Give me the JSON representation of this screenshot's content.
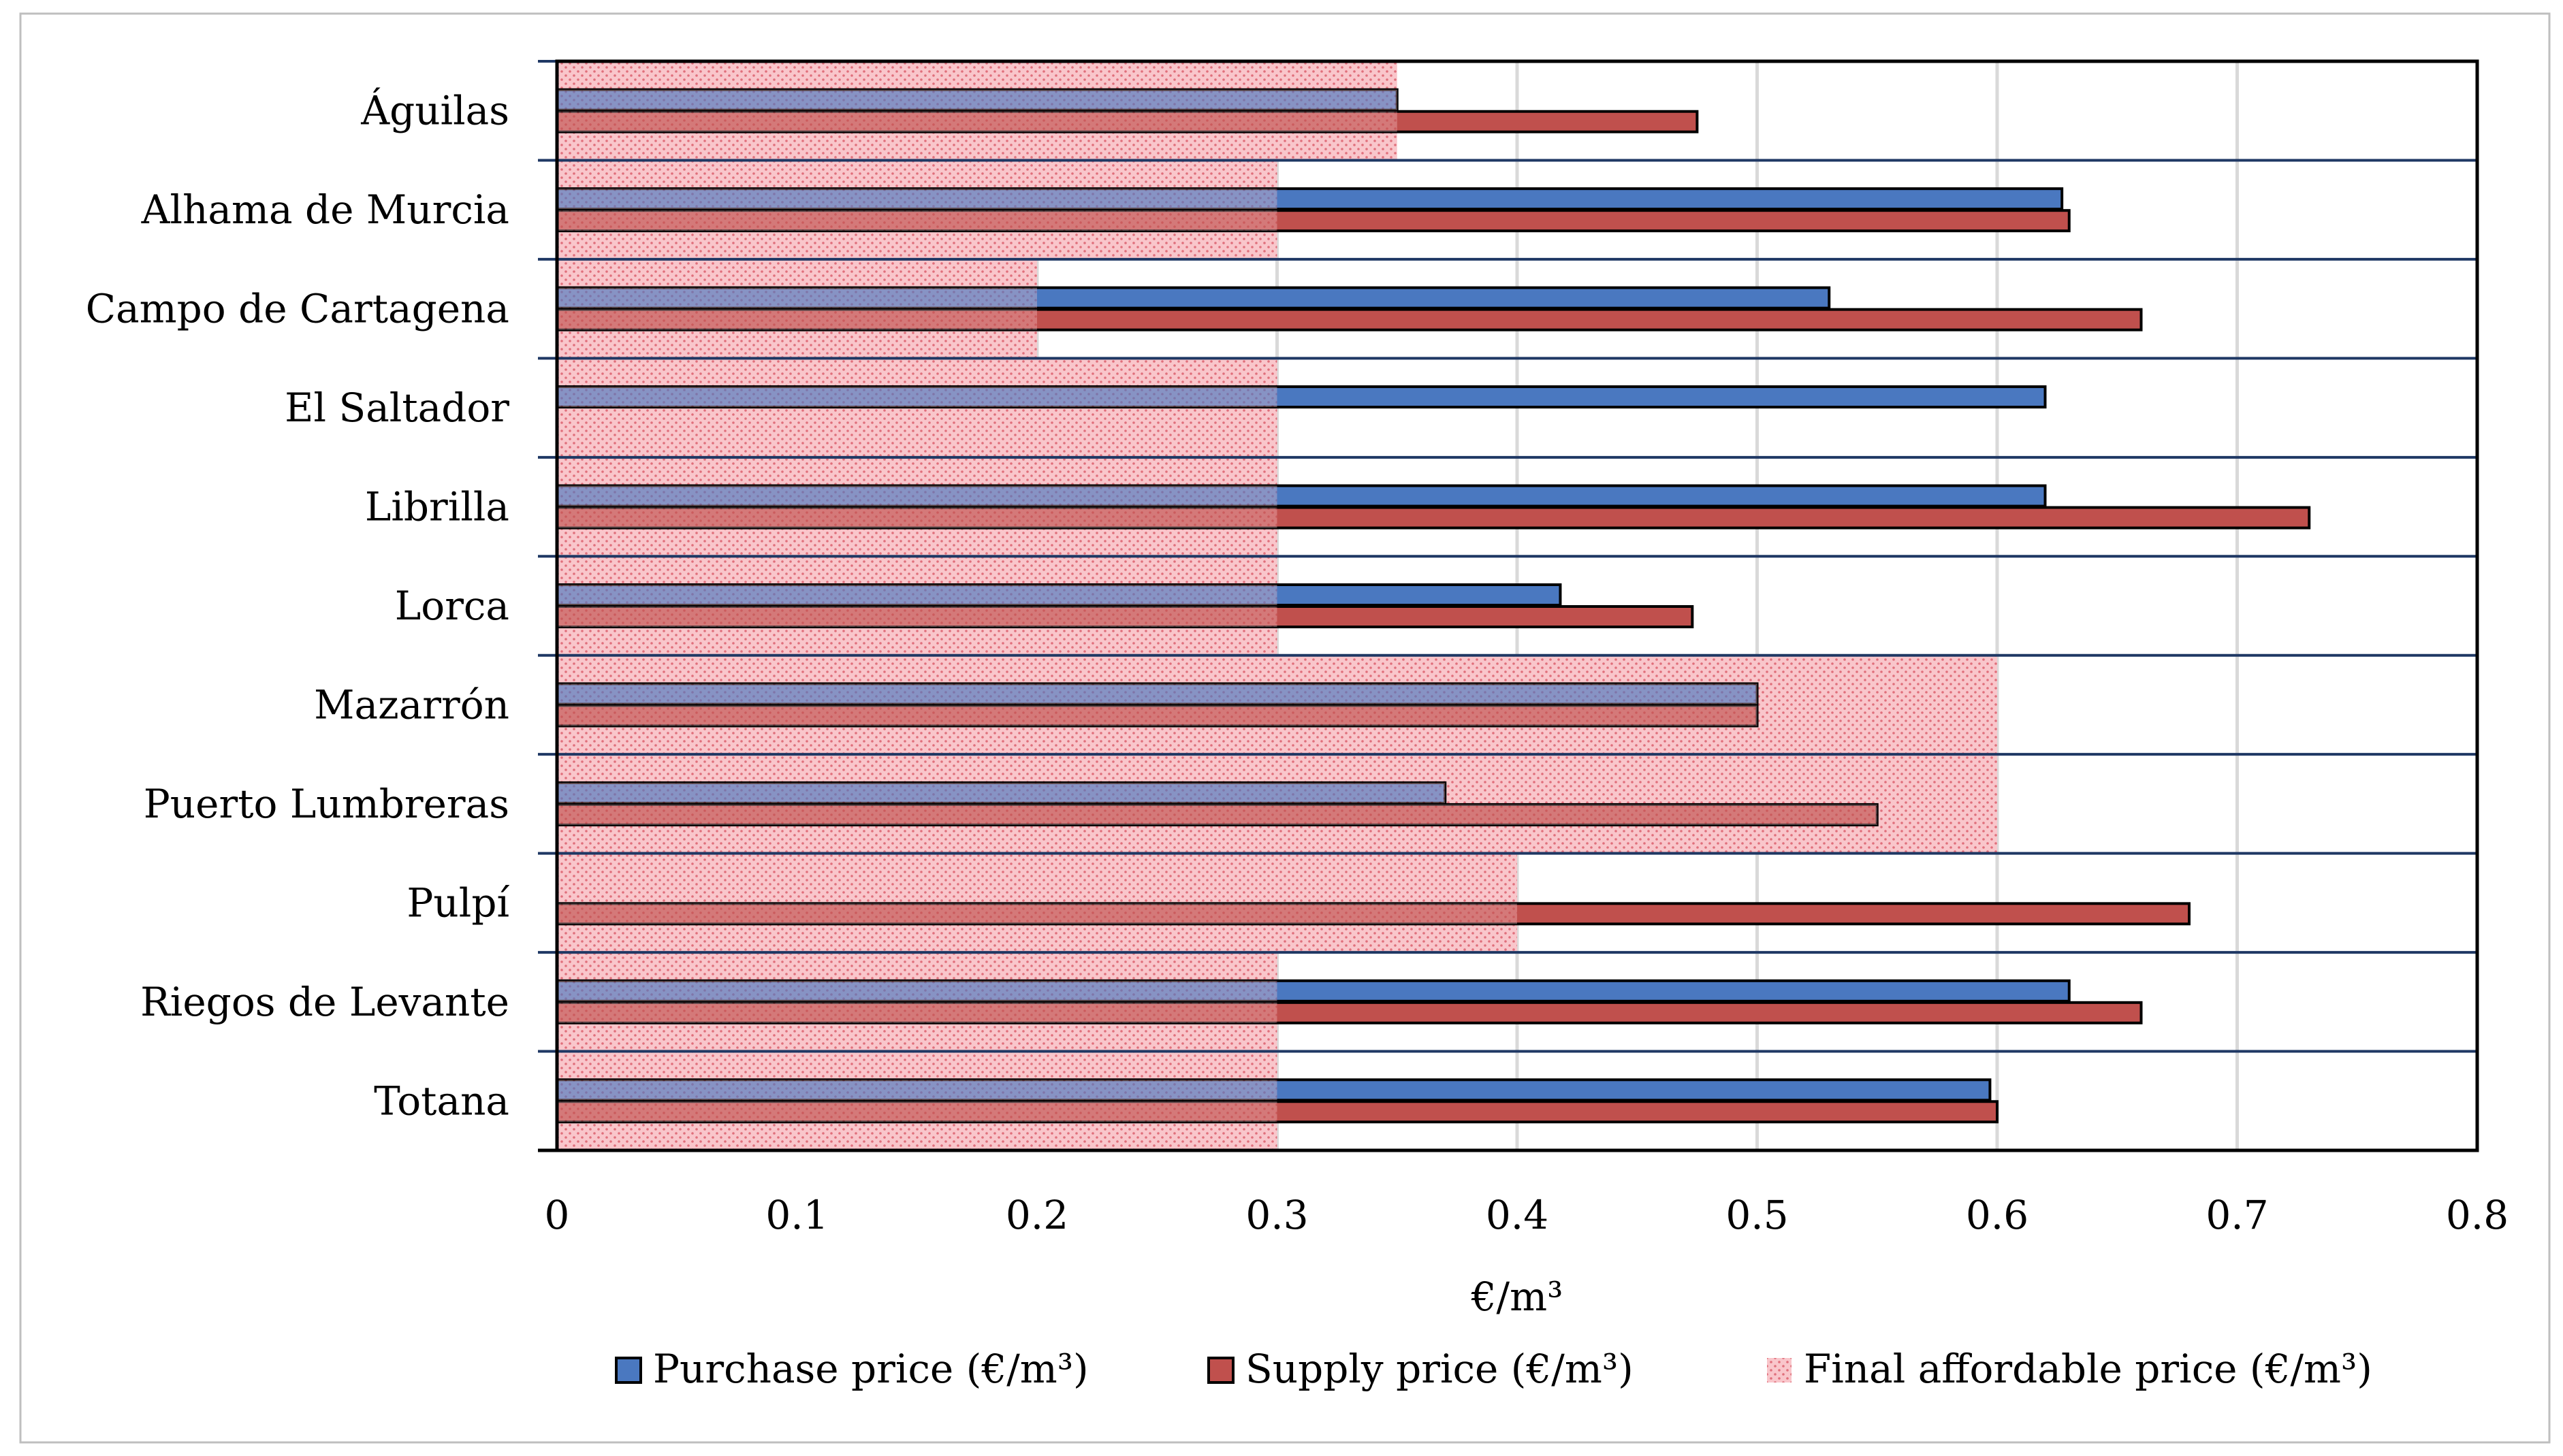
{
  "chart_data": {
    "type": "bar",
    "orientation": "horizontal",
    "categories": [
      "Águilas",
      "Alhama de Murcia",
      "Campo de Cartagena",
      "El Saltador",
      "Librilla",
      "Lorca",
      "Mazarrón",
      "Puerto Lumbreras",
      "Pulpí",
      "Riegos de Levante",
      "Totana"
    ],
    "series": [
      {
        "name": "Purchase price (€/m³)",
        "style": "bar",
        "color": "#4a78c0",
        "values": [
          0.35,
          0.627,
          0.53,
          0.62,
          0.62,
          0.418,
          0.5,
          0.37,
          null,
          0.63,
          0.597
        ]
      },
      {
        "name": "Supply price (€/m³)",
        "style": "bar",
        "color": "#c0504d",
        "values": [
          0.475,
          0.63,
          0.66,
          null,
          0.73,
          0.473,
          0.5,
          0.55,
          0.68,
          0.66,
          0.6
        ]
      },
      {
        "name": "Final affordable price (€/m³)",
        "style": "band",
        "color": "#f7b5bc",
        "values": [
          0.35,
          0.3,
          0.2,
          0.3,
          0.3,
          0.3,
          0.6,
          0.6,
          0.4,
          0.3,
          0.3
        ]
      }
    ],
    "xlabel": "€/m³",
    "ylabel": "",
    "title": "",
    "xlim": [
      0,
      0.8
    ],
    "xticks": [
      "0",
      "0.1",
      "0.2",
      "0.3",
      "0.4",
      "0.5",
      "0.6",
      "0.7",
      "0.8"
    ],
    "grid": true,
    "legend_position": "bottom"
  }
}
